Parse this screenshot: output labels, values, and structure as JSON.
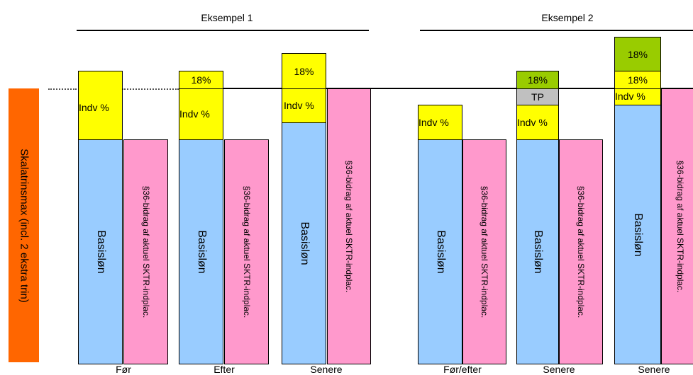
{
  "headers": {
    "example1": "Eksempel 1",
    "example2": "Eksempel 2"
  },
  "side_label": "Skalatrinsmax (incl. 2 ekstra trin)",
  "labels": {
    "basis": "Basisløn",
    "bidrag": "§36-bidrag af aktuel SKTR-indplac.",
    "indv": "Indv %",
    "pct18": "18%",
    "tp": "TP"
  },
  "x_labels": [
    "Før",
    "Efter",
    "Senere",
    "Før/efter",
    "Senere",
    "Senere"
  ],
  "colors": {
    "basis": "#99ccff",
    "bidrag": "#ff99cc",
    "indv": "#ffff00",
    "pct18_top": "#99cc00",
    "tp": "#c0c0c0",
    "side_bar": "#ff6600"
  }
}
